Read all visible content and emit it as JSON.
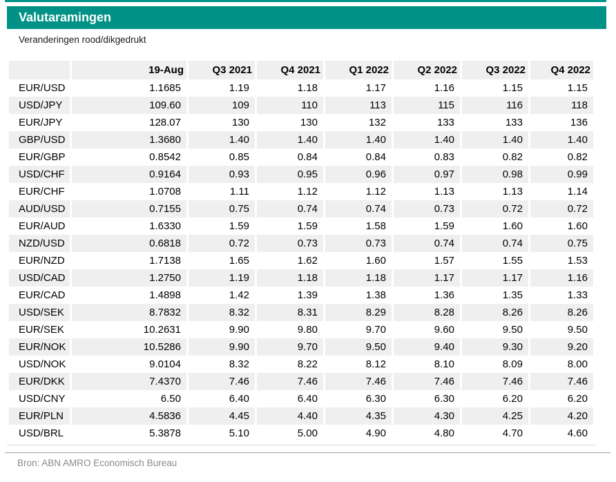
{
  "header": {
    "title": "Valutaramingen"
  },
  "legend": {
    "note": "Veranderingen rood/dikgedrukt"
  },
  "table": {
    "column_headers": [
      "19-Aug",
      "Q3 2021",
      "Q4 2021",
      "Q1 2022",
      "Q2 2022",
      "Q3 2022",
      "Q4 2022"
    ],
    "rows": [
      {
        "pair": "EUR/USD",
        "values": [
          "1.1685",
          "1.19",
          "1.18",
          "1.17",
          "1.16",
          "1.15",
          "1.15"
        ]
      },
      {
        "pair": "USD/JPY",
        "values": [
          "109.60",
          "109",
          "110",
          "113",
          "115",
          "116",
          "118"
        ]
      },
      {
        "pair": "EUR/JPY",
        "values": [
          "128.07",
          "130",
          "130",
          "132",
          "133",
          "133",
          "136"
        ]
      },
      {
        "pair": "GBP/USD",
        "values": [
          "1.3680",
          "1.40",
          "1.40",
          "1.40",
          "1.40",
          "1.40",
          "1.40"
        ]
      },
      {
        "pair": "EUR/GBP",
        "values": [
          "0.8542",
          "0.85",
          "0.84",
          "0.84",
          "0.83",
          "0.82",
          "0.82"
        ]
      },
      {
        "pair": "USD/CHF",
        "values": [
          "0.9164",
          "0.93",
          "0.95",
          "0.96",
          "0.97",
          "0.98",
          "0.99"
        ]
      },
      {
        "pair": "EUR/CHF",
        "values": [
          "1.0708",
          "1.11",
          "1.12",
          "1.12",
          "1.13",
          "1.13",
          "1.14"
        ]
      },
      {
        "pair": "AUD/USD",
        "values": [
          "0.7155",
          "0.75",
          "0.74",
          "0.74",
          "0.73",
          "0.72",
          "0.72"
        ]
      },
      {
        "pair": "EUR/AUD",
        "values": [
          "1.6330",
          "1.59",
          "1.59",
          "1.58",
          "1.59",
          "1.60",
          "1.60"
        ]
      },
      {
        "pair": "NZD/USD",
        "values": [
          "0.6818",
          "0.72",
          "0.73",
          "0.73",
          "0.74",
          "0.74",
          "0.75"
        ]
      },
      {
        "pair": "EUR/NZD",
        "values": [
          "1.7138",
          "1.65",
          "1.62",
          "1.60",
          "1.57",
          "1.55",
          "1.53"
        ]
      },
      {
        "pair": "USD/CAD",
        "values": [
          "1.2750",
          "1.19",
          "1.18",
          "1.18",
          "1.17",
          "1.17",
          "1.16"
        ]
      },
      {
        "pair": "EUR/CAD",
        "values": [
          "1.4898",
          "1.42",
          "1.39",
          "1.38",
          "1.36",
          "1.35",
          "1.33"
        ]
      },
      {
        "pair": "USD/SEK",
        "values": [
          "8.7832",
          "8.32",
          "8.31",
          "8.29",
          "8.28",
          "8.26",
          "8.26"
        ]
      },
      {
        "pair": "EUR/SEK",
        "values": [
          "10.2631",
          "9.90",
          "9.80",
          "9.70",
          "9.60",
          "9.50",
          "9.50"
        ]
      },
      {
        "pair": "EUR/NOK",
        "values": [
          "10.5286",
          "9.90",
          "9.70",
          "9.50",
          "9.40",
          "9.30",
          "9.20"
        ]
      },
      {
        "pair": "USD/NOK",
        "values": [
          "9.0104",
          "8.32",
          "8.22",
          "8.12",
          "8.10",
          "8.09",
          "8.00"
        ]
      },
      {
        "pair": "EUR/DKK",
        "values": [
          "7.4370",
          "7.46",
          "7.46",
          "7.46",
          "7.46",
          "7.46",
          "7.46"
        ]
      },
      {
        "pair": "USD/CNY",
        "values": [
          "6.50",
          "6.40",
          "6.40",
          "6.30",
          "6.30",
          "6.20",
          "6.20"
        ]
      },
      {
        "pair": "EUR/PLN",
        "values": [
          "4.5836",
          "4.45",
          "4.40",
          "4.35",
          "4.30",
          "4.25",
          "4.20"
        ]
      },
      {
        "pair": "USD/BRL",
        "values": [
          "5.3878",
          "5.10",
          "5.00",
          "4.90",
          "4.80",
          "4.70",
          "4.60"
        ]
      }
    ]
  },
  "footer": {
    "source": "Bron: ABN AMRO Economisch Bureau"
  },
  "colors": {
    "accent": "#009286",
    "stripe": "#efefef",
    "source_text": "#8a8a8a",
    "divider": "#a0a0a0"
  }
}
